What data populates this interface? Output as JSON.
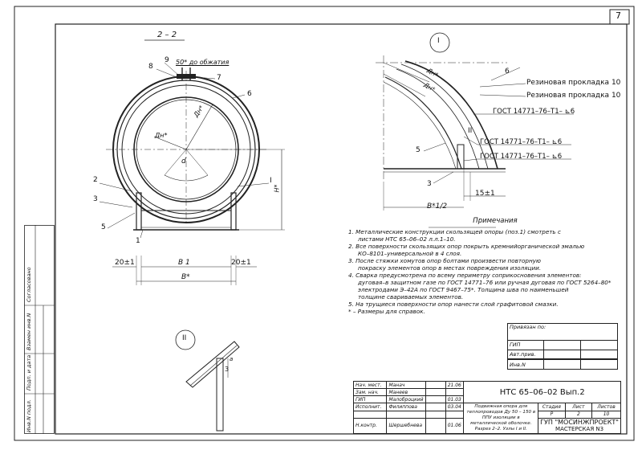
{
  "sheet_number": "7",
  "section": {
    "label": "2 – 2",
    "dim_top": "50* до обжатия",
    "dim_inner_dia": "Дн*",
    "dim_outer_dia": "Дн*",
    "dim_angle": "d",
    "dim_height": "H*",
    "dim_b1": "B 1",
    "dim_b": "B*",
    "dim_left": "20±1",
    "dim_right": "20±1",
    "callouts": [
      "9",
      "8",
      "7",
      "6",
      "2",
      "3",
      "5",
      "1",
      "I"
    ]
  },
  "node1": {
    "label": "I",
    "dim_outer": "Дн*",
    "dim_inner": "Дн*",
    "rubber1": "Резиновая прокладка",
    "rubber1_num": "10",
    "rubber2": "Резиновая прокладка",
    "rubber2_num": "10",
    "weld1": "ГОСТ 14771–76–Т1– ⊾6",
    "weld2": "ГОСТ 14771–76–Т1– ⊾6",
    "weld3": "ГОСТ 14771–76–Т1– ⊾6",
    "mark_ii": "II",
    "callouts": [
      "6",
      "5",
      "3"
    ],
    "dim_15": "15±1",
    "dim_b_half": "B*1/2"
  },
  "node2": {
    "label": "II",
    "dim_3": "3",
    "dim_a": "a"
  },
  "notes": {
    "title": "Примечания",
    "items": [
      "1. Металлические конструкции скользящей опоры (поз.1) смотреть с",
      "листами НТС 65–06–02 л.л.1–10.",
      "2. Все поверхности скользящих опор покрыть кремнийорганической эмалью",
      "КО–8101–универсальной в 4 слоя.",
      "3. После стяжки хомутов опор болтами произвести повторную",
      "покраску элементов опор в местах повреждения изоляции.",
      "4. Сварка предусмотрена по всему периметру соприкосновения элементов:",
      "дуговая–в защитном газе по ГОСТ 14771–76 или ручная дуговая по ГОСТ 5264–80*",
      "электродами Э–42А по ГОСТ 9467–75*. Толщина шва по наименьшей",
      "толщине свариваемых элементов.",
      "5. На трущиеся поверхности опор нанести слой графитовой смазки.",
      "* – Размеры для справок."
    ]
  },
  "privyazan": {
    "title": "Привязан по:",
    "rows": [
      "ГИП",
      "Авт.прив.",
      "",
      "Инв.N"
    ]
  },
  "stamp": {
    "doc_code": "НТС 65–06–02 Вып.2",
    "people": [
      {
        "role": "Нач. мест.",
        "name": "Манач",
        "date": "21.06"
      },
      {
        "role": "Зам. нач.",
        "name": "Манеев",
        "date": ""
      },
      {
        "role": "ГИП",
        "name": "Малоброцкий",
        "date": "01.03"
      },
      {
        "role": "Исполнит.",
        "name": "Филиппова",
        "date": "03.04"
      },
      {
        "role": "",
        "name": "",
        "date": ""
      },
      {
        "role": "Н.контр.",
        "name": "Шершебнева",
        "date": "01.06"
      }
    ],
    "description": "Подвижная опора для теплопроводов Ду 50 – 150 в ППУ изоляции в металлической оболочке. Разрез 2–2. Узлы I и II.",
    "stage_label": "Стадия",
    "sheet_label": "Лист",
    "sheets_label": "Листов",
    "stage": "Р",
    "sheet": "2",
    "sheets": "10",
    "org": "ГУП \"МОСИНЖПРОЕКТ\"",
    "dept": "МАСТЕРСКАЯ N3"
  },
  "side_stamp": {
    "agreed": "Согласовано",
    "changed": "Взамен инв.N",
    "sign_date": "Подп. и дата",
    "inv": "Инв.N подл."
  }
}
